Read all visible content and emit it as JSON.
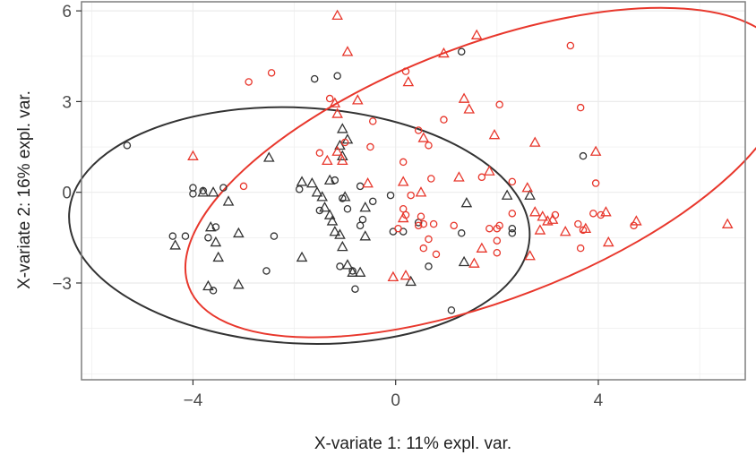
{
  "chart_data": {
    "type": "scatter",
    "xlabel": "X-variate 1: 11% expl. var.",
    "ylabel": "X-variate 2: 16% expl. var.",
    "xlim": [
      -6.2,
      6.9
    ],
    "ylim": [
      -6.2,
      6.3
    ],
    "x_ticks": [
      -4,
      0,
      4
    ],
    "x_tick_labels": [
      "−4",
      "0",
      "4"
    ],
    "y_ticks": [
      -3,
      0,
      3,
      6
    ],
    "y_tick_labels": [
      "−3",
      "0",
      "3",
      "6"
    ],
    "grid": true,
    "legend": "none",
    "colors": {
      "group_a": "#333333",
      "group_b": "#e8372c",
      "background": "#ffffff",
      "grid": "#ebebeb",
      "frame": "#7f7f7f"
    },
    "ellipses": [
      {
        "color": "#333333",
        "cx": -1.9,
        "cy": -1.1,
        "rx": 4.55,
        "ry": 3.9,
        "angle_deg": 3
      },
      {
        "color": "#e8372c",
        "cx": 1.8,
        "cy": 0.65,
        "rx": 6.3,
        "ry": 4.2,
        "angle_deg": -21
      }
    ],
    "series": [
      {
        "color": "#333333",
        "marker": "circle",
        "points": [
          [
            -5.3,
            1.55
          ],
          [
            -4.0,
            0.15
          ],
          [
            -4.0,
            -0.05
          ],
          [
            -3.8,
            0.05
          ],
          [
            -4.4,
            -1.45
          ],
          [
            -4.15,
            -1.45
          ],
          [
            -3.4,
            0.15
          ],
          [
            -3.55,
            -1.15
          ],
          [
            -3.7,
            -1.5
          ],
          [
            -3.6,
            -3.25
          ],
          [
            -2.55,
            -2.6
          ],
          [
            -2.4,
            -1.45
          ],
          [
            -1.6,
            3.75
          ],
          [
            -1.15,
            3.85
          ],
          [
            -1.9,
            0.1
          ],
          [
            -1.2,
            0.4
          ],
          [
            -0.7,
            0.2
          ],
          [
            -1.5,
            -0.6
          ],
          [
            -1.05,
            -0.2
          ],
          [
            -0.95,
            -0.55
          ],
          [
            -0.65,
            -0.9
          ],
          [
            -0.7,
            -1.1
          ],
          [
            -0.45,
            -0.3
          ],
          [
            -1.1,
            -2.45
          ],
          [
            -0.85,
            -2.6
          ],
          [
            -0.8,
            -3.2
          ],
          [
            0.45,
            -1.0
          ],
          [
            -0.05,
            -1.3
          ],
          [
            0.15,
            -1.3
          ],
          [
            -0.1,
            -0.1
          ],
          [
            1.3,
            4.65
          ],
          [
            1.3,
            -1.35
          ],
          [
            0.65,
            -2.45
          ],
          [
            2.3,
            -1.2
          ],
          [
            2.3,
            -1.35
          ],
          [
            3.7,
            1.2
          ],
          [
            1.1,
            -3.9
          ]
        ]
      },
      {
        "color": "#333333",
        "marker": "triangle",
        "points": [
          [
            -4.35,
            -1.75
          ],
          [
            -3.8,
            0.0
          ],
          [
            -3.65,
            -1.15
          ],
          [
            -3.6,
            0.0
          ],
          [
            -3.3,
            -0.3
          ],
          [
            -3.1,
            -1.35
          ],
          [
            -3.7,
            -3.1
          ],
          [
            -3.1,
            -3.05
          ],
          [
            -3.55,
            -1.65
          ],
          [
            -3.5,
            -2.15
          ],
          [
            -2.5,
            1.15
          ],
          [
            -1.85,
            0.35
          ],
          [
            -1.65,
            0.3
          ],
          [
            -1.55,
            0.0
          ],
          [
            -1.45,
            -0.15
          ],
          [
            -1.3,
            0.4
          ],
          [
            -1.4,
            -0.5
          ],
          [
            -1.3,
            -0.75
          ],
          [
            -1.25,
            -0.95
          ],
          [
            -1.2,
            -1.3
          ],
          [
            -1.1,
            -1.4
          ],
          [
            -1.05,
            -1.8
          ],
          [
            -1.0,
            -0.15
          ],
          [
            -1.1,
            1.55
          ],
          [
            -1.05,
            1.2
          ],
          [
            -1.05,
            2.1
          ],
          [
            -0.95,
            1.75
          ],
          [
            -0.6,
            -1.45
          ],
          [
            -0.95,
            -2.4
          ],
          [
            -0.7,
            -2.65
          ],
          [
            -1.85,
            -2.15
          ],
          [
            -0.6,
            -0.5
          ],
          [
            0.3,
            -2.95
          ],
          [
            1.4,
            -0.35
          ],
          [
            1.35,
            -2.3
          ],
          [
            2.2,
            -0.1
          ],
          [
            2.65,
            -0.1
          ],
          [
            -0.85,
            -2.65
          ]
        ]
      },
      {
        "color": "#e8372c",
        "marker": "circle",
        "points": [
          [
            -2.9,
            3.65
          ],
          [
            -2.45,
            3.95
          ],
          [
            -1.3,
            3.1
          ],
          [
            -1.0,
            1.65
          ],
          [
            -1.5,
            1.3
          ],
          [
            -0.45,
            2.35
          ],
          [
            -0.5,
            1.5
          ],
          [
            -3.0,
            0.2
          ],
          [
            0.15,
            1.0
          ],
          [
            0.2,
            4.0
          ],
          [
            0.45,
            2.05
          ],
          [
            0.65,
            1.55
          ],
          [
            0.95,
            2.4
          ],
          [
            0.3,
            -0.1
          ],
          [
            0.15,
            -0.55
          ],
          [
            0.2,
            -0.75
          ],
          [
            0.5,
            -0.8
          ],
          [
            0.45,
            -1.1
          ],
          [
            0.55,
            -1.05
          ],
          [
            0.7,
            0.45
          ],
          [
            0.75,
            -1.05
          ],
          [
            0.65,
            -1.55
          ],
          [
            0.55,
            -1.85
          ],
          [
            0.8,
            -2.05
          ],
          [
            1.15,
            -1.1
          ],
          [
            1.7,
            0.5
          ],
          [
            2.05,
            2.9
          ],
          [
            2.3,
            0.35
          ],
          [
            2.3,
            -0.7
          ],
          [
            1.85,
            -1.2
          ],
          [
            2.0,
            -1.2
          ],
          [
            2.0,
            -1.6
          ],
          [
            2.0,
            -2.0
          ],
          [
            2.05,
            -1.1
          ],
          [
            3.6,
            -1.05
          ],
          [
            3.7,
            -1.25
          ],
          [
            3.65,
            2.8
          ],
          [
            3.95,
            0.3
          ],
          [
            3.9,
            -0.7
          ],
          [
            3.65,
            -1.85
          ],
          [
            3.45,
            4.85
          ],
          [
            4.05,
            -0.75
          ],
          [
            4.7,
            -1.1
          ],
          [
            3.15,
            -0.75
          ],
          [
            0.05,
            -1.2
          ]
        ]
      },
      {
        "color": "#e8372c",
        "marker": "triangle",
        "points": [
          [
            -1.15,
            5.85
          ],
          [
            -0.95,
            4.65
          ],
          [
            -1.2,
            2.95
          ],
          [
            -1.15,
            2.6
          ],
          [
            -0.75,
            3.05
          ],
          [
            -1.15,
            1.35
          ],
          [
            -1.35,
            1.05
          ],
          [
            -1.05,
            1.05
          ],
          [
            -4.0,
            1.2
          ],
          [
            0.25,
            3.65
          ],
          [
            0.55,
            1.8
          ],
          [
            0.95,
            4.6
          ],
          [
            1.6,
            5.2
          ],
          [
            1.35,
            3.1
          ],
          [
            1.45,
            2.75
          ],
          [
            1.95,
            1.9
          ],
          [
            0.15,
            0.35
          ],
          [
            0.5,
            0.0
          ],
          [
            -0.55,
            0.3
          ],
          [
            0.15,
            -0.85
          ],
          [
            -0.05,
            -2.8
          ],
          [
            0.2,
            -2.75
          ],
          [
            1.25,
            0.5
          ],
          [
            1.85,
            0.7
          ],
          [
            2.75,
            1.65
          ],
          [
            2.6,
            0.15
          ],
          [
            2.75,
            -0.65
          ],
          [
            2.85,
            -1.25
          ],
          [
            1.7,
            -1.85
          ],
          [
            2.9,
            -0.8
          ],
          [
            3.1,
            -0.9
          ],
          [
            3.75,
            -1.2
          ],
          [
            3.35,
            -1.3
          ],
          [
            3.95,
            1.35
          ],
          [
            4.15,
            -0.65
          ],
          [
            4.2,
            -1.65
          ],
          [
            4.75,
            -0.95
          ],
          [
            6.55,
            -1.05
          ],
          [
            1.55,
            -2.35
          ],
          [
            2.65,
            -2.1
          ],
          [
            3.0,
            -0.95
          ]
        ]
      }
    ]
  }
}
